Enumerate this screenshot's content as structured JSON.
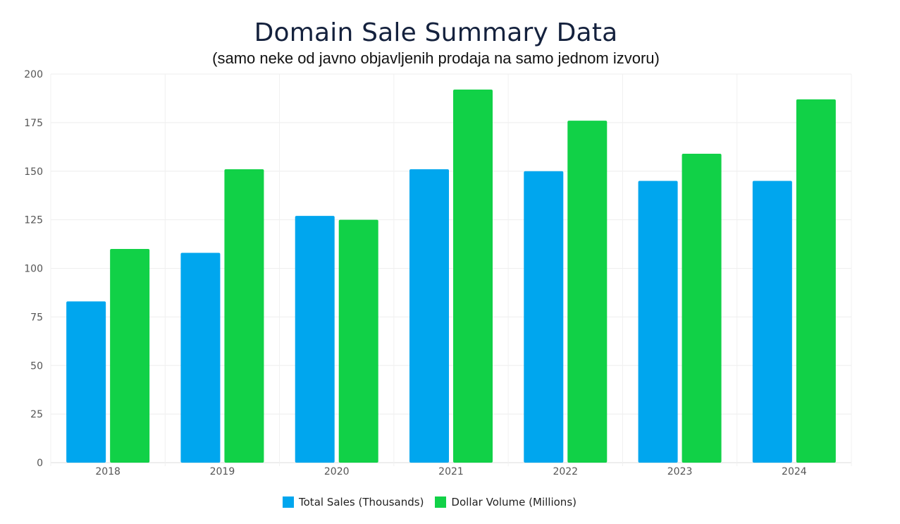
{
  "chart_data": {
    "type": "bar",
    "title": "Domain Sale Summary Data",
    "subtitle": "(samo neke od javno objavljenih prodaja na samo jednom izvoru)",
    "categories": [
      "2018",
      "2019",
      "2020",
      "2021",
      "2022",
      "2023",
      "2024"
    ],
    "series": [
      {
        "name": "Total Sales (Thousands)",
        "color": "#00a6ee",
        "values": [
          83,
          108,
          127,
          151,
          150,
          145,
          145
        ]
      },
      {
        "name": "Dollar Volume (Millions)",
        "color": "#11d147",
        "values": [
          110,
          151,
          125,
          192,
          176,
          159,
          187
        ]
      }
    ],
    "ylim": [
      0,
      200
    ],
    "yticks": [
      0,
      25,
      50,
      75,
      100,
      125,
      150,
      175,
      200
    ],
    "xlabel": "",
    "ylabel": "",
    "grid": true,
    "legend_position": "bottom-center"
  }
}
